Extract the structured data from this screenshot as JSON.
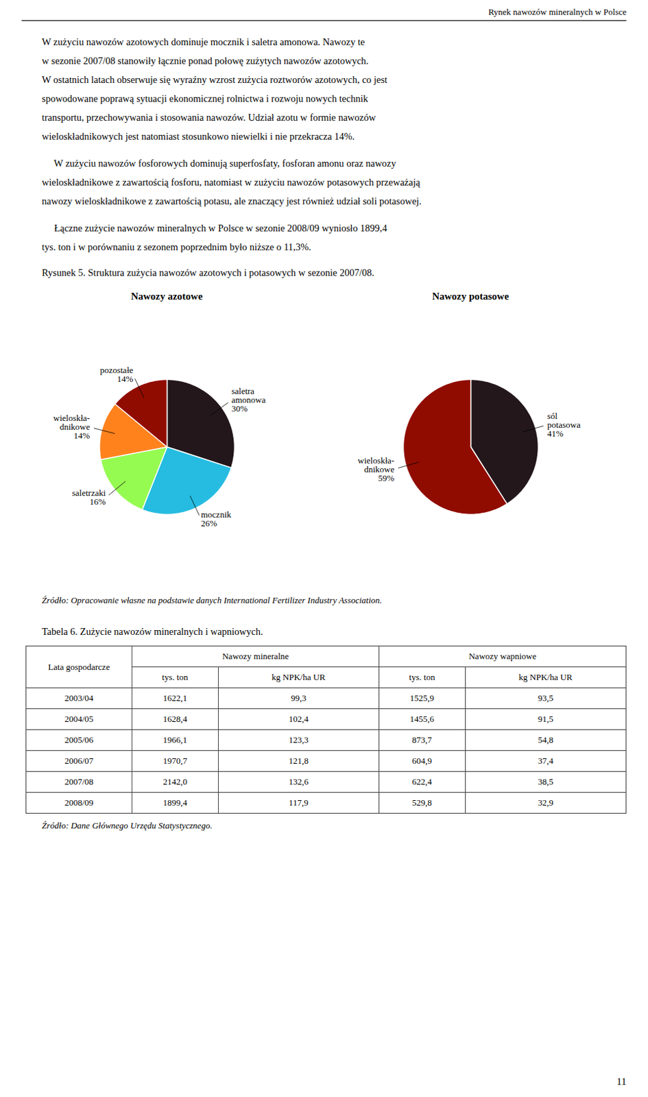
{
  "header": "Rynek nawozów mineralnych w Polsce",
  "paragraphs": [
    [
      "W zużyciu nawozów azotowych dominuje mocznik i saletra amonowa. Nawozy te",
      "w sezonie 2007/08 stanowiły łącznie ponad połowę zużytych nawozów azotowych.",
      "W ostatnich latach obserwuje się wyraźny wzrost zużycia roztworów azotowych, co jest",
      "spowodowane poprawą sytuacji ekonomicznej rolnictwa i rozwoju nowych technik",
      "transportu, przechowywania i stosowania nawozów. Udział azotu w formie nawozów",
      "wieloskładnikowych jest natomiast stosunkowo niewielki i nie przekracza 14%."
    ],
    [
      "     W zużyciu nawozów fosforowych dominują superfosfaty, fosforan amonu oraz nawozy",
      "wieloskładnikowe z zawartością fosforu, natomiast w zużyciu nawozów potasowych przeważają",
      "nawozy wieloskładnikowe z zawartością potasu, ale znaczący jest również udział soli potasowej."
    ],
    [
      "     Łączne zużycie nawozów mineralnych w Polsce w sezonie 2008/09 wyniosło 1899,4",
      "tys. ton i w porównaniu z sezonem poprzednim było niższe o 11,3%."
    ]
  ],
  "figure_caption": "Rysunek 5. Struktura zużycia nawozów azotowych i potasowych w sezonie 2007/08.",
  "chart_data": [
    {
      "type": "pie",
      "title": "Nawozy azotowe",
      "categories": [
        "saletra\namonowa",
        "mocznik",
        "saletrzaki",
        "wieloskła-\ndnikowe",
        "pozostałe"
      ],
      "values": [
        30,
        26,
        16,
        14,
        14
      ],
      "value_labels": [
        "30%",
        "26%",
        "16%",
        "14%",
        "14%"
      ],
      "data_labels": true
    },
    {
      "type": "pie",
      "title": "Nawozy potasowe",
      "categories": [
        "sól\npotasowa",
        "wieloskła-\ndnikowe"
      ],
      "values": [
        41,
        59
      ],
      "value_labels": [
        "41%",
        "59%"
      ],
      "data_labels": true
    }
  ],
  "source_pie": "Źródło: Opracowanie własne na podstawie danych International Fertilizer Industry Association.",
  "table_caption": "Tabela 6. Zużycie nawozów mineralnych i wapniowych.",
  "table": {
    "row_header": "Lata gospodarcze",
    "col_groups": [
      "Nawozy mineralne",
      "Nawozy wapniowe"
    ],
    "col_headers": [
      "tys. ton",
      "kg NPK/ha UR",
      "tys. ton",
      "kg NPK/ha UR"
    ],
    "rows": [
      [
        "2003/04",
        "1622,1",
        "99,3",
        "1525,9",
        "93,5"
      ],
      [
        "2004/05",
        "1628,4",
        "102,4",
        "1455,6",
        "91,5"
      ],
      [
        "2005/06",
        "1966,1",
        "123,3",
        "873,7",
        "54,8"
      ],
      [
        "2006/07",
        "1970,7",
        "121,8",
        "604,9",
        "37,4"
      ],
      [
        "2007/08",
        "2142,0",
        "132,6",
        "622,4",
        "38,5"
      ],
      [
        "2008/09",
        "1899,4",
        "117,9",
        "529,8",
        "32,9"
      ]
    ]
  },
  "source_table": "Źródło: Dane Głównego Urzędu Statystycznego.",
  "page_number": "11"
}
